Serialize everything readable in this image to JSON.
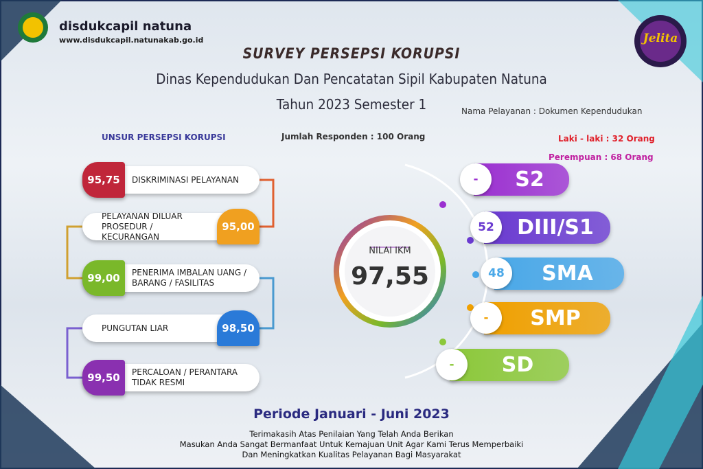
{
  "header": {
    "org": "disdukcapil natuna",
    "url": "www.disdukcapil.natunakab.go.id",
    "logo_text": "Jelita"
  },
  "title": {
    "line1": "SURVEY PERSEPSI KORUPSI",
    "line2": "Dinas Kependudukan Dan Pencatatan Sipil Kabupaten Natuna",
    "line3": "Tahun 2023 Semester 1"
  },
  "service": "Nama Pelayanan : Dokumen Kependudukan",
  "respondents": "Jumlah Responden : 100 Orang",
  "gender": [
    "Laki - laki  :  32 Orang",
    "Perempuan  :  68 Orang"
  ],
  "elements_title": "UNSUR PERSEPSI KORUPSI",
  "elements": [
    {
      "label": "DISKRIMINASI PELAYANAN",
      "score": "95,75"
    },
    {
      "label": "PELAYANAN DILUAR PROSEDUR / KECURANGAN",
      "score": "95,00"
    },
    {
      "label": "PENERIMA IMBALAN UANG / BARANG / FASILITAS",
      "score": "99,00"
    },
    {
      "label": "PUNGUTAN LIAR",
      "score": "98,50"
    },
    {
      "label": "PERCALOAN / PERANTARA TIDAK RESMI",
      "score": "99,50"
    }
  ],
  "ikm": {
    "label": "NILAI IKM",
    "value": "97,55"
  },
  "education": [
    {
      "level": "S2",
      "count": "-"
    },
    {
      "level": "DIII/S1",
      "count": "52"
    },
    {
      "level": "SMA",
      "count": "48"
    },
    {
      "level": "SMP",
      "count": "-"
    },
    {
      "level": "SD",
      "count": "-"
    }
  ],
  "period": "Periode Januari - Juni  2023",
  "footer": [
    "Terimakasih Atas Penilaian Yang Telah Anda Berikan",
    "Masukan Anda Sangat Bermanfaat Untuk Kemajuan Unit Agar Kami Terus Memperbaiki",
    "Dan Meningkatkan Kualitas Pelayanan Bagi Masyarakat"
  ]
}
